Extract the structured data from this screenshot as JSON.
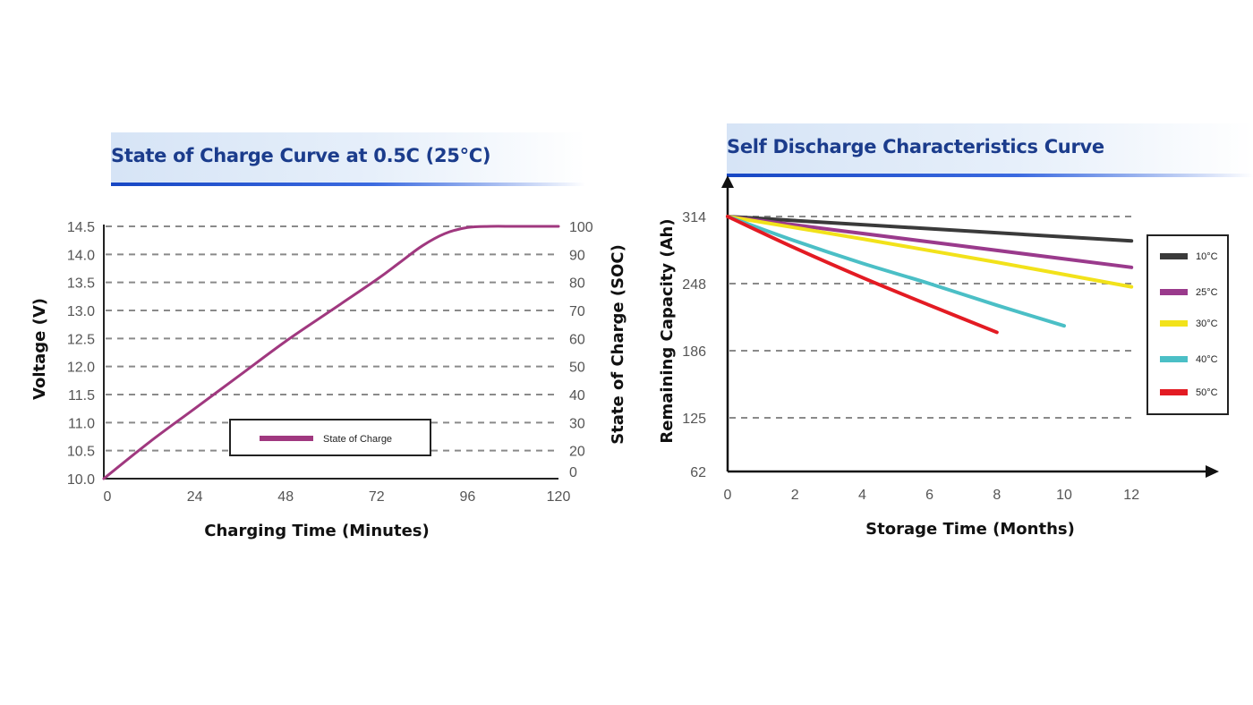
{
  "chart_data": [
    {
      "type": "line",
      "title": "State of Charge Curve at 0.5C (25°C)",
      "xlabel": "Charging Time (Minutes)",
      "ylabel": "Voltage (V)",
      "ylabel_right": "State of Charge (SOC)",
      "x_ticks": [
        "0",
        "24",
        "48",
        "72",
        "96",
        "120"
      ],
      "xlim": [
        0,
        120
      ],
      "y_ticks": [
        "10.0",
        "10.5",
        "11.0",
        "11.5",
        "12.0",
        "12.5",
        "13.0",
        "13.5",
        "14.0",
        "14.5"
      ],
      "ylim": [
        10.0,
        14.5
      ],
      "y_right_ticks": [
        "0",
        "20",
        "30",
        "40",
        "50",
        "60",
        "70",
        "80",
        "90",
        "100"
      ],
      "grid": "horizontal-dashed",
      "legend": {
        "position": "bottom-center",
        "entries": [
          {
            "label": "State of Charge",
            "color": "#a0387f"
          }
        ]
      },
      "series": [
        {
          "name": "State of Charge",
          "color": "#a0387f",
          "x": [
            0,
            12,
            24,
            36,
            48,
            60,
            72,
            78,
            84,
            90,
            96,
            102,
            108,
            114,
            120
          ],
          "y": [
            10.0,
            10.65,
            11.25,
            11.85,
            12.45,
            13.0,
            13.55,
            13.85,
            14.15,
            14.37,
            14.48,
            14.5,
            14.5,
            14.5,
            14.5
          ]
        }
      ]
    },
    {
      "type": "line",
      "title": "Self Discharge Characteristics Curve",
      "xlabel": "Storage Time (Months)",
      "ylabel": "Remaining Capacity (Ah)",
      "x_ticks": [
        "0",
        "2",
        "4",
        "6",
        "8",
        "10",
        "12"
      ],
      "xlim": [
        0,
        12
      ],
      "y_ticks": [
        "62",
        "125",
        "186",
        "248",
        "314"
      ],
      "ylim": [
        62,
        314
      ],
      "grid": "horizontal-dashed",
      "legend": {
        "position": "right",
        "entries": [
          {
            "label": "10°C",
            "color": "#3a3a3a"
          },
          {
            "label": "25°C",
            "color": "#9a3a8c"
          },
          {
            "label": "30°C",
            "color": "#f2e21a"
          },
          {
            "label": "40°C",
            "color": "#4bbfc6"
          },
          {
            "label": "50°C",
            "color": "#e31b23"
          }
        ]
      },
      "series": [
        {
          "name": "10°C",
          "color": "#3a3a3a",
          "x": [
            0,
            12
          ],
          "y": [
            314,
            290
          ]
        },
        {
          "name": "25°C",
          "color": "#9a3a8c",
          "x": [
            0,
            12
          ],
          "y": [
            314,
            264
          ]
        },
        {
          "name": "30°C",
          "color": "#f2e21a",
          "x": [
            0,
            4,
            8,
            12
          ],
          "y": [
            314,
            292,
            269,
            245
          ]
        },
        {
          "name": "40°C",
          "color": "#4bbfc6",
          "x": [
            0,
            2,
            4,
            6,
            8,
            10
          ],
          "y": [
            314,
            290,
            268,
            248,
            228,
            209
          ]
        },
        {
          "name": "50°C",
          "color": "#e31b23",
          "x": [
            0,
            2,
            4,
            6,
            8
          ],
          "y": [
            314,
            283,
            254,
            228,
            203
          ]
        }
      ]
    }
  ]
}
